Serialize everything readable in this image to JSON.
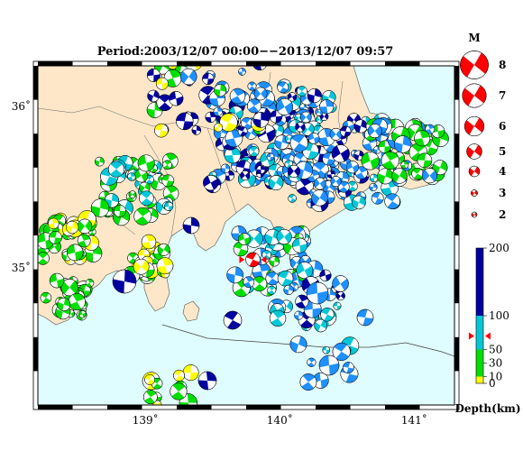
{
  "title": "Period:2003/12/07 00:00−−2013/12/07 09:57",
  "axes": {
    "lon_ticks": [
      {
        "value": 139,
        "label": "139˚"
      },
      {
        "value": 140,
        "label": "140˚"
      },
      {
        "value": 141,
        "label": "141˚"
      }
    ],
    "lat_ticks": [
      {
        "value": 36,
        "label": "36˚"
      },
      {
        "value": 35,
        "label": "35˚"
      }
    ],
    "lon_range": [
      138.2,
      141.3
    ],
    "lat_range": [
      34.15,
      36.25
    ]
  },
  "colors": {
    "sea": "#dffdfe",
    "land": "#fde7c8",
    "deep": "#0000a0",
    "mid": "#1e90ff",
    "shallow": "#00e000",
    "veryshallow": "#ffff00",
    "cyan": "#00c8d8",
    "mainshock": "#ff0000"
  },
  "magnitude_legend": {
    "heading": "M",
    "items": [
      {
        "m": 8,
        "label": "8"
      },
      {
        "m": 7,
        "label": "7"
      },
      {
        "m": 6,
        "label": "6"
      },
      {
        "m": 5,
        "label": "5"
      },
      {
        "m": 4,
        "label": "4"
      },
      {
        "m": 3,
        "label": "3"
      },
      {
        "m": 2,
        "label": "2"
      }
    ]
  },
  "depth_scale": {
    "title": "Depth(km)",
    "ticks": [
      {
        "value": 200,
        "label": "200"
      },
      {
        "value": 100,
        "label": "100"
      },
      {
        "value": 50,
        "label": "50"
      },
      {
        "value": 30,
        "label": "30"
      },
      {
        "value": 10,
        "label": "10"
      },
      {
        "value": 0,
        "label": "0"
      }
    ],
    "marker_depth": 70
  },
  "mainshock": {
    "lon": 139.8,
    "lat": 35.05,
    "m": 5.5
  }
}
